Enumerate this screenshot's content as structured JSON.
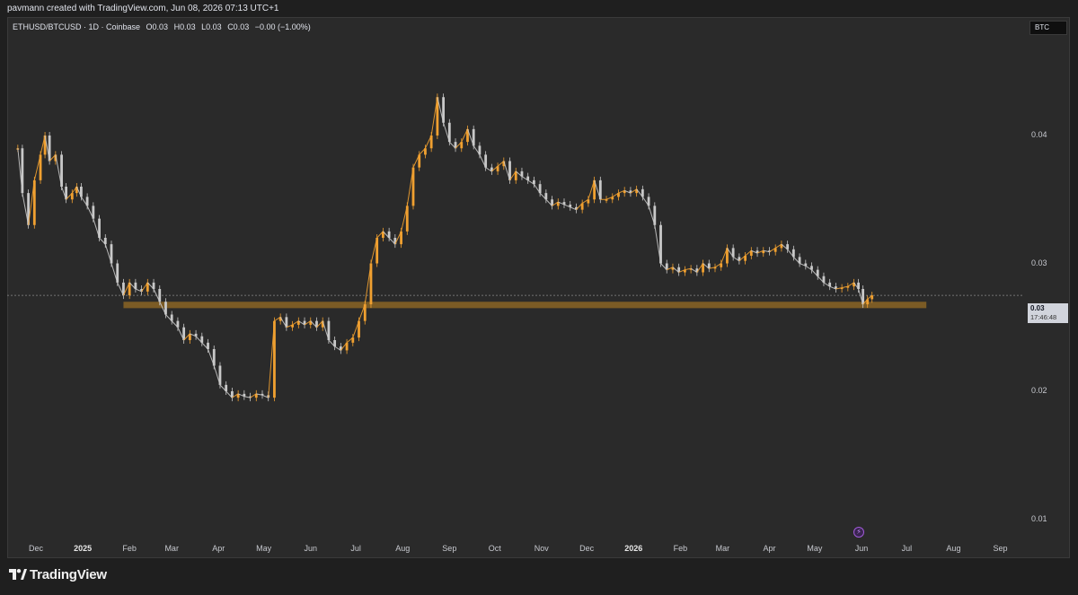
{
  "header": {
    "text": "pavmann created with TradingView.com, Jun 08, 2026 07:13 UTC+1"
  },
  "legend": {
    "symbol": "ETHUSD/BTCUSD · 1D · Coinbase",
    "open": "O0.03",
    "high": "H0.03",
    "low": "L0.03",
    "close": "C0.03",
    "change": "−0.00 (−1.00%)"
  },
  "currency_badge": "BTC",
  "price_label": {
    "price": "0.03",
    "countdown": "17:46:48"
  },
  "footer": {
    "brand": "TradingView"
  },
  "colors": {
    "background": "#2a2a2a",
    "candle_up": "#f0a030",
    "candle_down": "#c8c8c8",
    "support_zone": "#8a6424"
  },
  "icons": {
    "flash": "lightning-icon",
    "logo": "tradingview-logo-icon"
  },
  "chart_data": {
    "type": "line",
    "title": "ETHUSD/BTCUSD · 1D · Coinbase",
    "yticks": [
      "0.04",
      "0.03",
      "0.02",
      "0.01"
    ],
    "xticks": [
      {
        "label": "Dec",
        "bold": false
      },
      {
        "label": "2025",
        "bold": true
      },
      {
        "label": "Feb",
        "bold": false
      },
      {
        "label": "Mar",
        "bold": false
      },
      {
        "label": "Apr",
        "bold": false
      },
      {
        "label": "May",
        "bold": false
      },
      {
        "label": "Jun",
        "bold": false
      },
      {
        "label": "Jul",
        "bold": false
      },
      {
        "label": "Aug",
        "bold": false
      },
      {
        "label": "Sep",
        "bold": false
      },
      {
        "label": "Oct",
        "bold": false
      },
      {
        "label": "Nov",
        "bold": false
      },
      {
        "label": "Dec",
        "bold": false
      },
      {
        "label": "2026",
        "bold": true
      },
      {
        "label": "Feb",
        "bold": false
      },
      {
        "label": "Mar",
        "bold": false
      },
      {
        "label": "Apr",
        "bold": false
      },
      {
        "label": "May",
        "bold": false
      },
      {
        "label": "Jun",
        "bold": false
      },
      {
        "label": "Jul",
        "bold": false
      },
      {
        "label": "Aug",
        "bold": false
      },
      {
        "label": "Sep",
        "bold": false
      }
    ],
    "y_range": [
      0.01,
      0.044
    ],
    "current_price": 0.0275,
    "support_zone": {
      "from": 0.027,
      "to": 0.0265,
      "start": "2025-01-28",
      "end": "2026-07-14"
    },
    "series": [
      {
        "values": [
          [
            "2024-11-19",
            0.039
          ],
          [
            "2024-11-22",
            0.0355
          ],
          [
            "2024-11-26",
            0.033
          ],
          [
            "2024-11-30",
            0.0365
          ],
          [
            "2024-12-04",
            0.0385
          ],
          [
            "2024-12-07",
            0.04
          ],
          [
            "2024-12-10",
            0.038
          ],
          [
            "2024-12-14",
            0.0385
          ],
          [
            "2024-12-18",
            0.036
          ],
          [
            "2024-12-21",
            0.035
          ],
          [
            "2024-12-25",
            0.0355
          ],
          [
            "2024-12-28",
            0.036
          ],
          [
            "2024-12-31",
            0.0352
          ],
          [
            "2025-01-04",
            0.0345
          ],
          [
            "2025-01-08",
            0.0335
          ],
          [
            "2025-01-12",
            0.032
          ],
          [
            "2025-01-16",
            0.0315
          ],
          [
            "2025-01-20",
            0.03
          ],
          [
            "2025-01-24",
            0.0285
          ],
          [
            "2025-01-28",
            0.0275
          ],
          [
            "2025-02-01",
            0.0285
          ],
          [
            "2025-02-05",
            0.028
          ],
          [
            "2025-02-09",
            0.0278
          ],
          [
            "2025-02-13",
            0.0285
          ],
          [
            "2025-02-17",
            0.028
          ],
          [
            "2025-02-21",
            0.027
          ],
          [
            "2025-02-25",
            0.026
          ],
          [
            "2025-03-01",
            0.0255
          ],
          [
            "2025-03-05",
            0.025
          ],
          [
            "2025-03-09",
            0.024
          ],
          [
            "2025-03-13",
            0.0245
          ],
          [
            "2025-03-17",
            0.0243
          ],
          [
            "2025-03-21",
            0.0238
          ],
          [
            "2025-03-25",
            0.0233
          ],
          [
            "2025-03-29",
            0.022
          ],
          [
            "2025-04-02",
            0.0205
          ],
          [
            "2025-04-06",
            0.02
          ],
          [
            "2025-04-10",
            0.0195
          ],
          [
            "2025-04-14",
            0.0198
          ],
          [
            "2025-04-18",
            0.0196
          ],
          [
            "2025-04-22",
            0.0195
          ],
          [
            "2025-04-26",
            0.0198
          ],
          [
            "2025-04-30",
            0.0197
          ],
          [
            "2025-05-04",
            0.0195
          ],
          [
            "2025-05-08",
            0.0255
          ],
          [
            "2025-05-12",
            0.0258
          ],
          [
            "2025-05-16",
            0.025
          ],
          [
            "2025-05-20",
            0.0252
          ],
          [
            "2025-05-24",
            0.0255
          ],
          [
            "2025-05-28",
            0.0252
          ],
          [
            "2025-06-01",
            0.0255
          ],
          [
            "2025-06-05",
            0.025
          ],
          [
            "2025-06-09",
            0.0255
          ],
          [
            "2025-06-13",
            0.024
          ],
          [
            "2025-06-17",
            0.0235
          ],
          [
            "2025-06-21",
            0.0232
          ],
          [
            "2025-06-25",
            0.0238
          ],
          [
            "2025-06-29",
            0.0242
          ],
          [
            "2025-07-03",
            0.0255
          ],
          [
            "2025-07-07",
            0.0268
          ],
          [
            "2025-07-11",
            0.03
          ],
          [
            "2025-07-15",
            0.032
          ],
          [
            "2025-07-19",
            0.0325
          ],
          [
            "2025-07-23",
            0.032
          ],
          [
            "2025-07-27",
            0.0315
          ],
          [
            "2025-07-31",
            0.0325
          ],
          [
            "2025-08-04",
            0.0345
          ],
          [
            "2025-08-08",
            0.0375
          ],
          [
            "2025-08-12",
            0.0385
          ],
          [
            "2025-08-16",
            0.039
          ],
          [
            "2025-08-20",
            0.04
          ],
          [
            "2025-08-24",
            0.043
          ],
          [
            "2025-08-28",
            0.041
          ],
          [
            "2025-09-01",
            0.0395
          ],
          [
            "2025-09-05",
            0.039
          ],
          [
            "2025-09-09",
            0.0395
          ],
          [
            "2025-09-13",
            0.0405
          ],
          [
            "2025-09-17",
            0.0392
          ],
          [
            "2025-09-21",
            0.0385
          ],
          [
            "2025-09-25",
            0.0375
          ],
          [
            "2025-09-29",
            0.0372
          ],
          [
            "2025-10-03",
            0.0376
          ],
          [
            "2025-10-07",
            0.038
          ],
          [
            "2025-10-11",
            0.0365
          ],
          [
            "2025-10-15",
            0.0372
          ],
          [
            "2025-10-19",
            0.0368
          ],
          [
            "2025-10-23",
            0.0365
          ],
          [
            "2025-10-27",
            0.0362
          ],
          [
            "2025-10-31",
            0.0355
          ],
          [
            "2025-11-04",
            0.035
          ],
          [
            "2025-11-08",
            0.0345
          ],
          [
            "2025-11-12",
            0.0348
          ],
          [
            "2025-11-16",
            0.0346
          ],
          [
            "2025-11-20",
            0.0344
          ],
          [
            "2025-11-24",
            0.0342
          ],
          [
            "2025-11-28",
            0.0347
          ],
          [
            "2025-12-02",
            0.035
          ],
          [
            "2025-12-06",
            0.0365
          ],
          [
            "2025-12-10",
            0.035
          ],
          [
            "2025-12-14",
            0.035
          ],
          [
            "2025-12-18",
            0.0352
          ],
          [
            "2025-12-22",
            0.0355
          ],
          [
            "2025-12-26",
            0.0357
          ],
          [
            "2025-12-30",
            0.0355
          ],
          [
            "2026-01-03",
            0.0358
          ],
          [
            "2026-01-07",
            0.0352
          ],
          [
            "2026-01-11",
            0.0345
          ],
          [
            "2026-01-15",
            0.033
          ],
          [
            "2026-01-19",
            0.03
          ],
          [
            "2026-01-23",
            0.0295
          ],
          [
            "2026-01-27",
            0.0297
          ],
          [
            "2026-01-31",
            0.0293
          ],
          [
            "2026-02-04",
            0.0295
          ],
          [
            "2026-02-08",
            0.0296
          ],
          [
            "2026-02-12",
            0.0293
          ],
          [
            "2026-02-16",
            0.03
          ],
          [
            "2026-02-20",
            0.0296
          ],
          [
            "2026-02-24",
            0.0297
          ],
          [
            "2026-02-28",
            0.03
          ],
          [
            "2026-03-04",
            0.0312
          ],
          [
            "2026-03-08",
            0.0305
          ],
          [
            "2026-03-12",
            0.0302
          ],
          [
            "2026-03-16",
            0.0306
          ],
          [
            "2026-03-20",
            0.031
          ],
          [
            "2026-03-24",
            0.0308
          ],
          [
            "2026-03-28",
            0.031
          ],
          [
            "2026-04-01",
            0.0309
          ],
          [
            "2026-04-05",
            0.0312
          ],
          [
            "2026-04-09",
            0.0315
          ],
          [
            "2026-04-13",
            0.0311
          ],
          [
            "2026-04-17",
            0.0305
          ],
          [
            "2026-04-21",
            0.03
          ],
          [
            "2026-04-25",
            0.0298
          ],
          [
            "2026-04-29",
            0.0295
          ],
          [
            "2026-05-03",
            0.029
          ],
          [
            "2026-05-07",
            0.0285
          ],
          [
            "2026-05-11",
            0.0282
          ],
          [
            "2026-05-15",
            0.028
          ],
          [
            "2026-05-19",
            0.0281
          ],
          [
            "2026-05-23",
            0.0282
          ],
          [
            "2026-05-27",
            0.0285
          ],
          [
            "2026-05-30",
            0.028
          ],
          [
            "2026-06-02",
            0.0268
          ],
          [
            "2026-06-05",
            0.0272
          ],
          [
            "2026-06-08",
            0.0275
          ]
        ]
      }
    ]
  }
}
